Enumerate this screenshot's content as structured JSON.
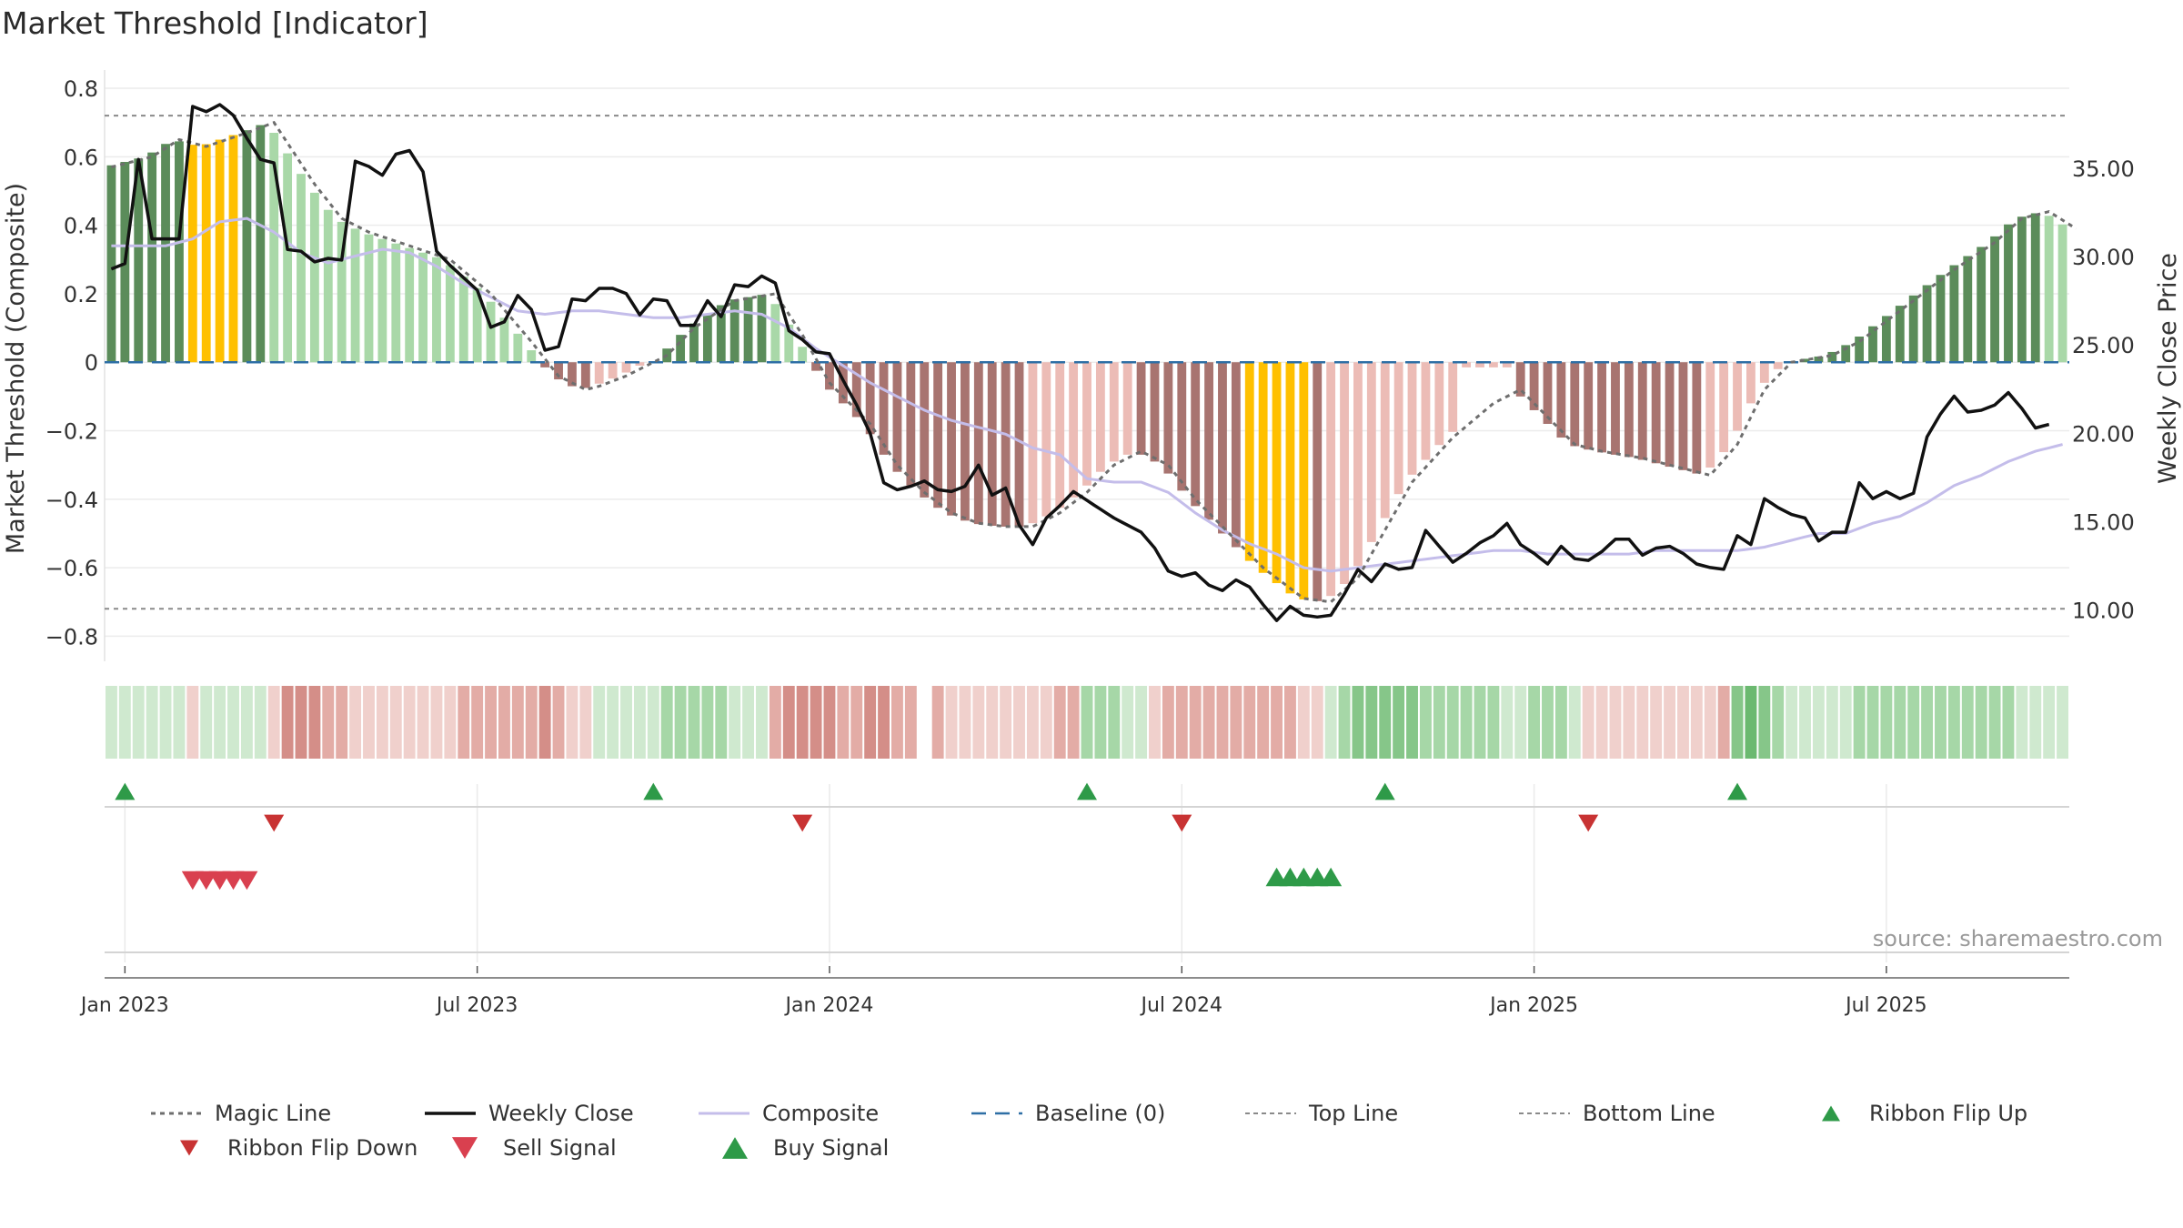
{
  "title": "Market Threshold [Indicator]",
  "chart_data": {
    "type": "bar",
    "left_axis": {
      "label": "Market Threshold (Composite)",
      "range": [
        -0.86,
        0.84
      ],
      "ticks": [
        {
          "v": 0.8,
          "t": "0.8"
        },
        {
          "v": 0.6,
          "t": "0.6"
        },
        {
          "v": 0.4,
          "t": "0.4"
        },
        {
          "v": 0.2,
          "t": "0.2"
        },
        {
          "v": 0,
          "t": "0"
        },
        {
          "v": -0.2,
          "t": "−0.2"
        },
        {
          "v": -0.4,
          "t": "−0.4"
        },
        {
          "v": -0.6,
          "t": "−0.6"
        },
        {
          "v": -0.8,
          "t": "−0.8"
        }
      ]
    },
    "right_axis": {
      "label": "Weekly Close Price",
      "range": [
        7.35,
        40.3
      ],
      "ticks": [
        {
          "v": 35,
          "t": "35.00"
        },
        {
          "v": 30,
          "t": "30.00"
        },
        {
          "v": 25,
          "t": "25.00"
        },
        {
          "v": 20,
          "t": "20.00"
        },
        {
          "v": 15,
          "t": "15.00"
        },
        {
          "v": 10,
          "t": "10.00"
        }
      ]
    },
    "x_ticks": [
      {
        "w": 1,
        "t": "Jan 2023"
      },
      {
        "w": 27,
        "t": "Jul 2023"
      },
      {
        "w": 53,
        "t": "Jan 2024"
      },
      {
        "w": 79,
        "t": "Jul 2024"
      },
      {
        "w": 105,
        "t": "Jan 2025"
      },
      {
        "w": 131,
        "t": "Jul 2025"
      }
    ],
    "week_count": 145,
    "grid": true,
    "top_line": 0.72,
    "bottom_line": -0.72,
    "baseline": 0,
    "magic_line_knots": [
      [
        0,
        0.57
      ],
      [
        3,
        0.6
      ],
      [
        5,
        0.65
      ],
      [
        7,
        0.63
      ],
      [
        10,
        0.67
      ],
      [
        12,
        0.7
      ],
      [
        13,
        0.64
      ],
      [
        15,
        0.52
      ],
      [
        17,
        0.42
      ],
      [
        19,
        0.38
      ],
      [
        22,
        0.34
      ],
      [
        25,
        0.3
      ],
      [
        28,
        0.2
      ],
      [
        31,
        0.06
      ],
      [
        33,
        -0.04
      ],
      [
        35,
        -0.08
      ],
      [
        36,
        -0.07
      ],
      [
        38,
        -0.04
      ],
      [
        41,
        0.02
      ],
      [
        43,
        0.1
      ],
      [
        46,
        0.18
      ],
      [
        49,
        0.2
      ],
      [
        51,
        0.08
      ],
      [
        53,
        -0.06
      ],
      [
        56,
        -0.18
      ],
      [
        58,
        -0.3
      ],
      [
        60,
        -0.38
      ],
      [
        62,
        -0.44
      ],
      [
        64,
        -0.47
      ],
      [
        66,
        -0.48
      ],
      [
        68,
        -0.48
      ],
      [
        70,
        -0.44
      ],
      [
        72,
        -0.38
      ],
      [
        74,
        -0.3
      ],
      [
        76,
        -0.26
      ],
      [
        78,
        -0.3
      ],
      [
        80,
        -0.4
      ],
      [
        82,
        -0.48
      ],
      [
        85,
        -0.6
      ],
      [
        88,
        -0.69
      ],
      [
        90,
        -0.7
      ],
      [
        92,
        -0.63
      ],
      [
        94,
        -0.49
      ],
      [
        96,
        -0.35
      ],
      [
        99,
        -0.22
      ],
      [
        102,
        -0.12
      ],
      [
        104,
        -0.08
      ],
      [
        106,
        -0.16
      ],
      [
        108,
        -0.24
      ],
      [
        110,
        -0.26
      ],
      [
        113,
        -0.28
      ],
      [
        116,
        -0.31
      ],
      [
        118,
        -0.33
      ],
      [
        120,
        -0.24
      ],
      [
        122,
        -0.08
      ],
      [
        124,
        0
      ],
      [
        127,
        0.02
      ],
      [
        129,
        0.06
      ],
      [
        131,
        0.12
      ],
      [
        133,
        0.18
      ],
      [
        136,
        0.27
      ],
      [
        139,
        0.35
      ],
      [
        141,
        0.42
      ],
      [
        143,
        0.44
      ],
      [
        145,
        0.39
      ]
    ],
    "composite_knots": [
      [
        0,
        0.34
      ],
      [
        2,
        0.34
      ],
      [
        4,
        0.34
      ],
      [
        6,
        0.36
      ],
      [
        8,
        0.41
      ],
      [
        10,
        0.42
      ],
      [
        12,
        0.38
      ],
      [
        14,
        0.32
      ],
      [
        16,
        0.29
      ],
      [
        18,
        0.31
      ],
      [
        20,
        0.33
      ],
      [
        22,
        0.32
      ],
      [
        24,
        0.28
      ],
      [
        26,
        0.23
      ],
      [
        28,
        0.19
      ],
      [
        30,
        0.15
      ],
      [
        32,
        0.14
      ],
      [
        34,
        0.15
      ],
      [
        36,
        0.15
      ],
      [
        38,
        0.14
      ],
      [
        40,
        0.13
      ],
      [
        42,
        0.13
      ],
      [
        44,
        0.14
      ],
      [
        46,
        0.15
      ],
      [
        48,
        0.14
      ],
      [
        50,
        0.1
      ],
      [
        52,
        0.04
      ],
      [
        54,
        -0.01
      ],
      [
        56,
        -0.06
      ],
      [
        58,
        -0.1
      ],
      [
        60,
        -0.14
      ],
      [
        62,
        -0.17
      ],
      [
        64,
        -0.19
      ],
      [
        66,
        -0.21
      ],
      [
        68,
        -0.25
      ],
      [
        70,
        -0.27
      ],
      [
        72,
        -0.34
      ],
      [
        74,
        -0.35
      ],
      [
        76,
        -0.35
      ],
      [
        78,
        -0.38
      ],
      [
        80,
        -0.44
      ],
      [
        82,
        -0.49
      ],
      [
        84,
        -0.53
      ],
      [
        86,
        -0.56
      ],
      [
        88,
        -0.6
      ],
      [
        90,
        -0.61
      ],
      [
        92,
        -0.6
      ],
      [
        94,
        -0.59
      ],
      [
        96,
        -0.58
      ],
      [
        98,
        -0.57
      ],
      [
        100,
        -0.56
      ],
      [
        102,
        -0.55
      ],
      [
        104,
        -0.55
      ],
      [
        106,
        -0.56
      ],
      [
        108,
        -0.56
      ],
      [
        110,
        -0.56
      ],
      [
        112,
        -0.56
      ],
      [
        114,
        -0.55
      ],
      [
        116,
        -0.55
      ],
      [
        118,
        -0.55
      ],
      [
        120,
        -0.55
      ],
      [
        122,
        -0.54
      ],
      [
        124,
        -0.52
      ],
      [
        126,
        -0.5
      ],
      [
        128,
        -0.5
      ],
      [
        130,
        -0.47
      ],
      [
        132,
        -0.45
      ],
      [
        134,
        -0.41
      ],
      [
        136,
        -0.36
      ],
      [
        138,
        -0.33
      ],
      [
        140,
        -0.29
      ],
      [
        142,
        -0.26
      ],
      [
        144,
        -0.24
      ]
    ],
    "weekly_close_knots": [
      [
        0,
        29.3
      ],
      [
        1,
        29.6
      ],
      [
        2,
        35.5
      ],
      [
        3,
        31
      ],
      [
        4,
        31
      ],
      [
        5,
        31
      ],
      [
        6,
        38.5
      ],
      [
        7,
        38.2
      ],
      [
        8,
        38.6
      ],
      [
        9,
        38
      ],
      [
        10,
        36.7
      ],
      [
        11,
        35.5
      ],
      [
        12,
        35.3
      ],
      [
        13,
        30.4
      ],
      [
        14,
        30.3
      ],
      [
        15,
        29.7
      ],
      [
        16,
        29.9
      ],
      [
        17,
        29.8
      ],
      [
        18,
        35.4
      ],
      [
        19,
        35.1
      ],
      [
        20,
        34.6
      ],
      [
        21,
        35.8
      ],
      [
        22,
        36
      ],
      [
        23,
        34.8
      ],
      [
        24,
        30.3
      ],
      [
        25,
        29.5
      ],
      [
        26,
        28.8
      ],
      [
        27,
        28.1
      ],
      [
        28,
        26
      ],
      [
        29,
        26.3
      ],
      [
        30,
        27.8
      ],
      [
        31,
        27
      ],
      [
        32,
        24.7
      ],
      [
        33,
        24.9
      ],
      [
        34,
        27.6
      ],
      [
        35,
        27.5
      ],
      [
        36,
        28.2
      ],
      [
        37,
        28.2
      ],
      [
        38,
        27.9
      ],
      [
        39,
        26.7
      ],
      [
        40,
        27.6
      ],
      [
        41,
        27.5
      ],
      [
        42,
        26.1
      ],
      [
        43,
        26.1
      ],
      [
        44,
        27.5
      ],
      [
        45,
        26.6
      ],
      [
        46,
        28.4
      ],
      [
        47,
        28.3
      ],
      [
        48,
        28.9
      ],
      [
        49,
        28.5
      ],
      [
        50,
        25.8
      ],
      [
        51,
        25.3
      ],
      [
        52,
        24.6
      ],
      [
        53,
        24.5
      ],
      [
        54,
        23
      ],
      [
        55,
        21.6
      ],
      [
        56,
        20
      ],
      [
        57,
        17.2
      ],
      [
        58,
        16.8
      ],
      [
        59,
        17
      ],
      [
        60,
        17.3
      ],
      [
        61,
        16.8
      ],
      [
        62,
        16.7
      ],
      [
        63,
        17
      ],
      [
        64,
        18.2
      ],
      [
        65,
        16.5
      ],
      [
        66,
        16.9
      ],
      [
        67,
        14.8
      ],
      [
        68,
        13.7
      ],
      [
        69,
        15.2
      ],
      [
        70,
        15.9
      ],
      [
        71,
        16.7
      ],
      [
        72,
        16.2
      ],
      [
        73,
        15.7
      ],
      [
        74,
        15.2
      ],
      [
        75,
        14.8
      ],
      [
        76,
        14.4
      ],
      [
        77,
        13.5
      ],
      [
        78,
        12.2
      ],
      [
        79,
        11.9
      ],
      [
        80,
        12.1
      ],
      [
        81,
        11.4
      ],
      [
        82,
        11.1
      ],
      [
        83,
        11.7
      ],
      [
        84,
        11.3
      ],
      [
        85,
        10.3
      ],
      [
        86,
        9.4
      ],
      [
        87,
        10.2
      ],
      [
        88,
        9.7
      ],
      [
        89,
        9.6
      ],
      [
        90,
        9.7
      ],
      [
        91,
        10.9
      ],
      [
        92,
        12.3
      ],
      [
        93,
        11.6
      ],
      [
        94,
        12.6
      ],
      [
        95,
        12.3
      ],
      [
        96,
        12.4
      ],
      [
        97,
        14.5
      ],
      [
        98,
        13.6
      ],
      [
        99,
        12.7
      ],
      [
        100,
        13.2
      ],
      [
        101,
        13.8
      ],
      [
        102,
        14.2
      ],
      [
        103,
        14.9
      ],
      [
        104,
        13.7
      ],
      [
        105,
        13.2
      ],
      [
        106,
        12.6
      ],
      [
        107,
        13.6
      ],
      [
        108,
        12.9
      ],
      [
        109,
        12.8
      ],
      [
        110,
        13.3
      ],
      [
        111,
        14
      ],
      [
        112,
        14
      ],
      [
        113,
        13.1
      ],
      [
        114,
        13.5
      ],
      [
        115,
        13.6
      ],
      [
        116,
        13.2
      ],
      [
        117,
        12.6
      ],
      [
        118,
        12.4
      ],
      [
        119,
        12.3
      ],
      [
        120,
        14.2
      ],
      [
        121,
        13.7
      ],
      [
        122,
        16.3
      ],
      [
        123,
        15.8
      ],
      [
        124,
        15.4
      ],
      [
        125,
        15.2
      ],
      [
        126,
        13.9
      ],
      [
        127,
        14.4
      ],
      [
        128,
        14.4
      ],
      [
        129,
        17.2
      ],
      [
        130,
        16.3
      ],
      [
        131,
        16.7
      ],
      [
        132,
        16.3
      ],
      [
        133,
        16.6
      ],
      [
        134,
        19.8
      ],
      [
        135,
        21.1
      ],
      [
        136,
        22.1
      ],
      [
        137,
        21.2
      ],
      [
        138,
        21.3
      ],
      [
        139,
        21.6
      ],
      [
        140,
        22.3
      ],
      [
        141,
        21.4
      ],
      [
        142,
        20.3
      ],
      [
        143,
        20.5
      ]
    ],
    "ribbon_flip_up_weeks": [
      1,
      40,
      72,
      94,
      120
    ],
    "ribbon_flip_down_weeks": [
      12,
      51,
      79,
      109
    ],
    "sell_signal_weeks": [
      6,
      7,
      8,
      9,
      10
    ],
    "buy_signal_weeks": [
      86,
      87,
      88,
      89,
      90
    ],
    "bar_colors": {
      "dark_green": "#5b8c5a",
      "light_green": "#a9d8a8",
      "dark_red": "#a87470",
      "light_red": "#ecbcb6",
      "gold": "#ffc000"
    },
    "line_colors": {
      "magic": "#6e6e6e",
      "close": "#111111",
      "composite": "#c4bdea",
      "baseline": "#2e6fa5",
      "bounds": "#8a8a8a"
    },
    "signal_colors": {
      "flip_up": "#2e9a48",
      "flip_down": "#c83333",
      "sell": "#d9404f",
      "buy": "#2e9a48"
    }
  },
  "source": "source: sharemaestro.com",
  "legend": [
    {
      "label": "Magic Line",
      "sym": "dotted",
      "color": "#6e6e6e"
    },
    {
      "label": "Weekly Close",
      "sym": "solid",
      "color": "#111111"
    },
    {
      "label": "Composite",
      "sym": "solid-light",
      "color": "#c4bdea"
    },
    {
      "label": "Baseline (0)",
      "sym": "dashed",
      "color": "#2e6fa5"
    },
    {
      "label": "Top Line",
      "sym": "fine-dashed",
      "color": "#8a8a8a"
    },
    {
      "label": "Bottom Line",
      "sym": "fine-dashed",
      "color": "#8a8a8a"
    },
    {
      "label": "Ribbon Flip Up",
      "sym": "tri-up",
      "color": "#2e9a48"
    },
    {
      "label": "Ribbon Flip Down",
      "sym": "tri-down",
      "color": "#c83333"
    },
    {
      "label": "Sell Signal",
      "sym": "tri-down-lg",
      "color": "#d9404f"
    },
    {
      "label": "Buy Signal",
      "sym": "tri-up-lg",
      "color": "#2e9a48"
    }
  ]
}
